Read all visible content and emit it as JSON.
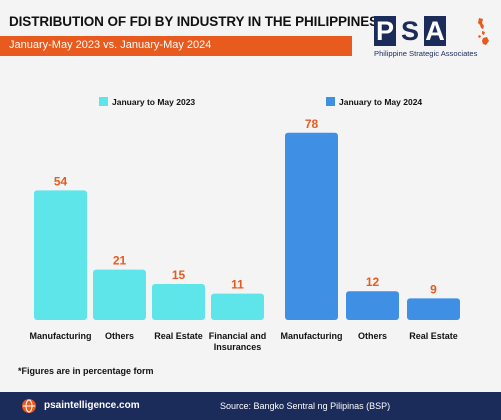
{
  "header": {
    "title": "DISTRIBUTION OF FDI BY INDUSTRY IN THE PHILIPPINES",
    "subtitle": "January-May 2023 vs. January-May 2024"
  },
  "logo": {
    "letters": [
      "P",
      "S",
      "A"
    ],
    "caption": "Philippine Strategic Associates"
  },
  "colors": {
    "accent": "#e85a1e",
    "navy": "#1b2b5a",
    "series_2023": "#5ee5ea",
    "series_2024": "#3f8fe5",
    "value_label": "#e85a1e"
  },
  "chart_data": [
    {
      "type": "bar",
      "categories": [
        "Manufacturing",
        "Others",
        "Real Estate",
        "Financial and Insurances"
      ],
      "series": [
        {
          "name": "January to May 2023",
          "values": [
            54,
            21,
            15,
            11
          ]
        }
      ],
      "ylim": [
        0,
        80
      ],
      "grid": false,
      "legend": "top"
    },
    {
      "type": "bar",
      "categories": [
        "Manufacturing",
        "Others",
        "Real Estate"
      ],
      "series": [
        {
          "name": "January to May 2024",
          "values": [
            78,
            12,
            9
          ]
        }
      ],
      "ylim": [
        0,
        80
      ],
      "grid": false,
      "legend": "top"
    }
  ],
  "footnote": "*Figures are in percentage form",
  "footer": {
    "icon": "globe-icon",
    "link": "psaintelligence.com",
    "source": "Source: Bangko Sentral ng Pilipinas (BSP)"
  }
}
